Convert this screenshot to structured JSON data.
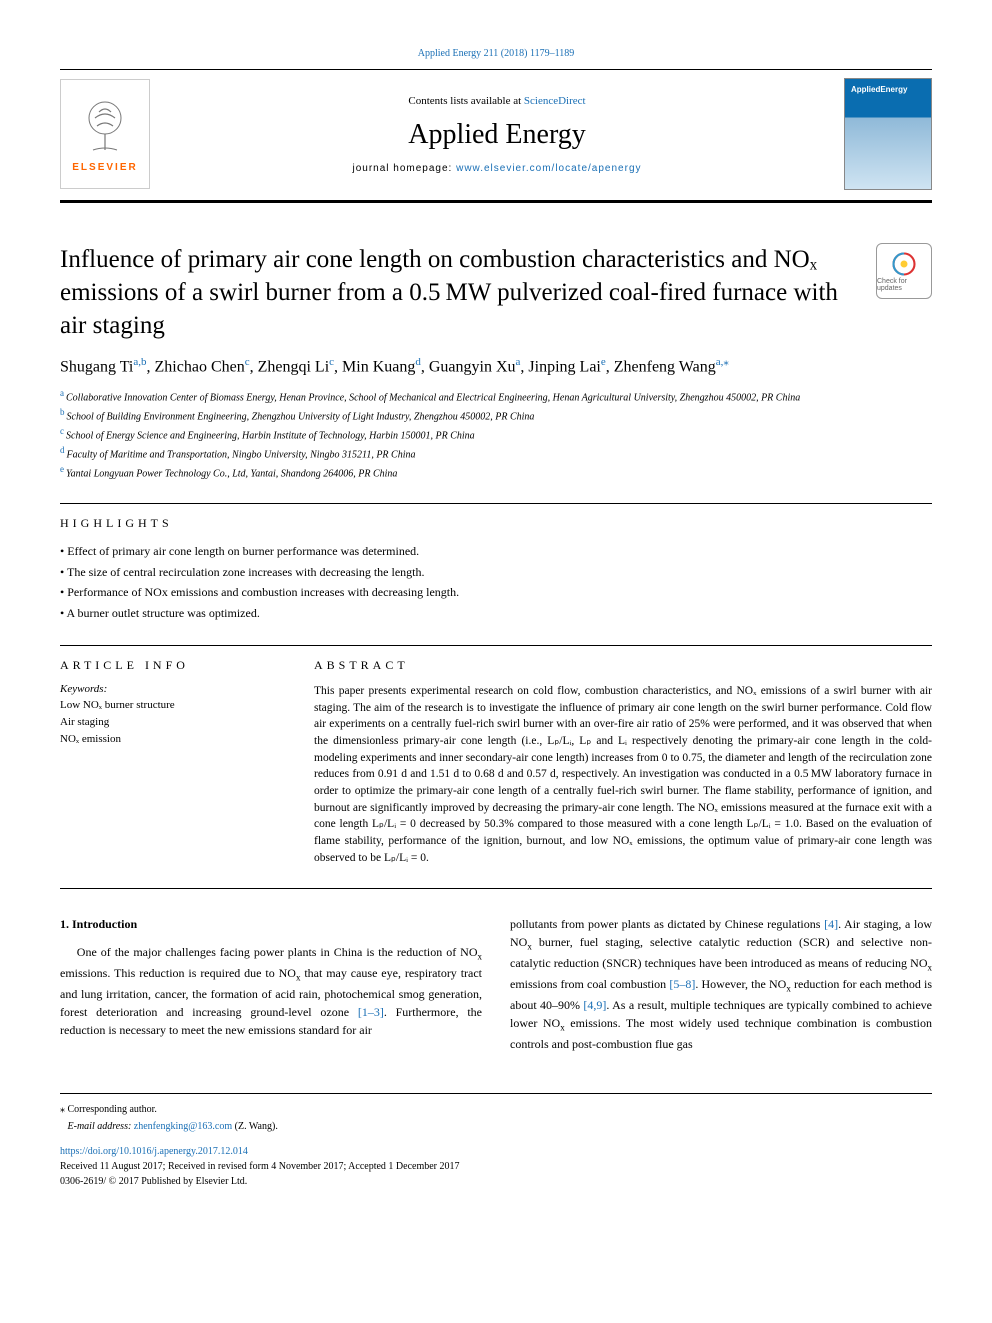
{
  "top_citation": "Applied Energy 211 (2018) 1179–1189",
  "masthead": {
    "contents_prefix": "Contents lists available at ",
    "contents_link": "ScienceDirect",
    "journal": "Applied Energy",
    "homepage_prefix": "journal homepage: ",
    "homepage_url": "www.elsevier.com/locate/apenergy",
    "elsevier_word": "ELSEVIER",
    "cover_label": "AppliedEnergy"
  },
  "article": {
    "title": "Influence of primary air cone length on combustion characteristics and NOₓ emissions of a swirl burner from a 0.5 MW pulverized coal-fired furnace with air staging",
    "crossmark_label": "Check for updates"
  },
  "authors_html": "Shugang Ti<sup class='sup'>a,b</sup>, Zhichao Chen<sup class='sup'>c</sup>, Zhengqi Li<sup class='sup'>c</sup>, Min Kuang<sup class='sup'>d</sup>, Guangyin Xu<sup class='sup'>a</sup>, Jinping Lai<sup class='sup'>e</sup>, Zhenfeng Wang<sup class='sup'>a,⁎</sup>",
  "affiliations": [
    {
      "lbl": "a",
      "text": "Collaborative Innovation Center of Biomass Energy, Henan Province, School of Mechanical and Electrical Engineering, Henan Agricultural University, Zhengzhou 450002, PR China"
    },
    {
      "lbl": "b",
      "text": "School of Building Environment Engineering, Zhengzhou University of Light Industry, Zhengzhou 450002, PR China"
    },
    {
      "lbl": "c",
      "text": "School of Energy Science and Engineering, Harbin Institute of Technology, Harbin 150001, PR China"
    },
    {
      "lbl": "d",
      "text": "Faculty of Maritime and Transportation, Ningbo University, Ningbo 315211, PR China"
    },
    {
      "lbl": "e",
      "text": "Yantai Longyuan Power Technology Co., Ltd, Yantai, Shandong 264006, PR China"
    }
  ],
  "highlights": {
    "heading": "HIGHLIGHTS",
    "items": [
      "Effect of primary air cone length on burner performance was determined.",
      "The size of central recirculation zone increases with decreasing the length.",
      "Performance of NOx emissions and combustion increases with decreasing length.",
      "A burner outlet structure was optimized."
    ]
  },
  "article_info": {
    "heading": "ARTICLE INFO",
    "keywords_label": "Keywords:",
    "keywords": [
      "Low NOₓ burner structure",
      "Air staging",
      "NOₓ emission"
    ]
  },
  "abstract": {
    "heading": "ABSTRACT",
    "text": "This paper presents experimental research on cold flow, combustion characteristics, and NOₓ emissions of a swirl burner with air staging. The aim of the research is to investigate the influence of primary air cone length on the swirl burner performance. Cold flow air experiments on a centrally fuel-rich swirl burner with an over-fire air ratio of 25% were performed, and it was observed that when the dimensionless primary-air cone length (i.e., Lₚ/Lᵢ, Lₚ and Lᵢ respectively denoting the primary-air cone length in the cold-modeling experiments and inner secondary-air cone length) increases from 0 to 0.75, the diameter and length of the recirculation zone reduces from 0.91 d and 1.51 d to 0.68 d and 0.57 d, respectively. An investigation was conducted in a 0.5 MW laboratory furnace in order to optimize the primary-air cone length of a centrally fuel-rich swirl burner. The flame stability, performance of ignition, and burnout are significantly improved by decreasing the primary-air cone length. The NOₓ emissions measured at the furnace exit with a cone length Lₚ/Lᵢ = 0 decreased by 50.3% compared to those measured with a cone length Lₚ/Lᵢ = 1.0. Based on the evaluation of flame stability, performance of the ignition, burnout, and low NOₓ emissions, the optimum value of primary-air cone length was observed to be Lₚ/Lᵢ = 0."
  },
  "body": {
    "section_number": "1.",
    "section_title": "Introduction",
    "col1_html": "One of the major challenges facing power plants in China is the reduction of NO<sub>x</sub> emissions. This reduction is required due to NO<sub>x</sub> that may cause eye, respiratory tract and lung irritation, cancer, the formation of acid rain, photochemical smog generation, forest deterioration and increasing ground-level ozone <span class='ref-link'>[1–3]</span>. Furthermore, the reduction is necessary to meet the new emissions standard for air",
    "col2_html": "pollutants from power plants as dictated by Chinese regulations <span class='ref-link'>[4]</span>. Air staging, a low NO<sub>x</sub> burner, fuel staging, selective catalytic reduction (SCR) and selective non-catalytic reduction (SNCR) techniques have been introduced as means of reducing NO<sub>x</sub> emissions from coal combustion <span class='ref-link'>[5–8]</span>. However, the NO<sub>x</sub> reduction for each method is about 40–90% <span class='ref-link'>[4,9]</span>. As a result, multiple techniques are typically combined to achieve lower NO<sub>x</sub> emissions. The most widely used technique combination is combustion controls and post-combustion flue gas"
  },
  "footer": {
    "corr_label": "⁎ Corresponding author.",
    "email_label": "E-mail address: ",
    "email": "zhenfengking@163.com",
    "email_suffix": " (Z. Wang).",
    "doi": "https://doi.org/10.1016/j.apenergy.2017.12.014",
    "history": "Received 11 August 2017; Received in revised form 4 November 2017; Accepted 1 December 2017",
    "copyright": "0306-2619/ © 2017 Published by Elsevier Ltd."
  },
  "colors": {
    "link": "#1a6fb5",
    "elsevier_orange": "#ff6600",
    "cover_blue": "#0a6db0"
  }
}
